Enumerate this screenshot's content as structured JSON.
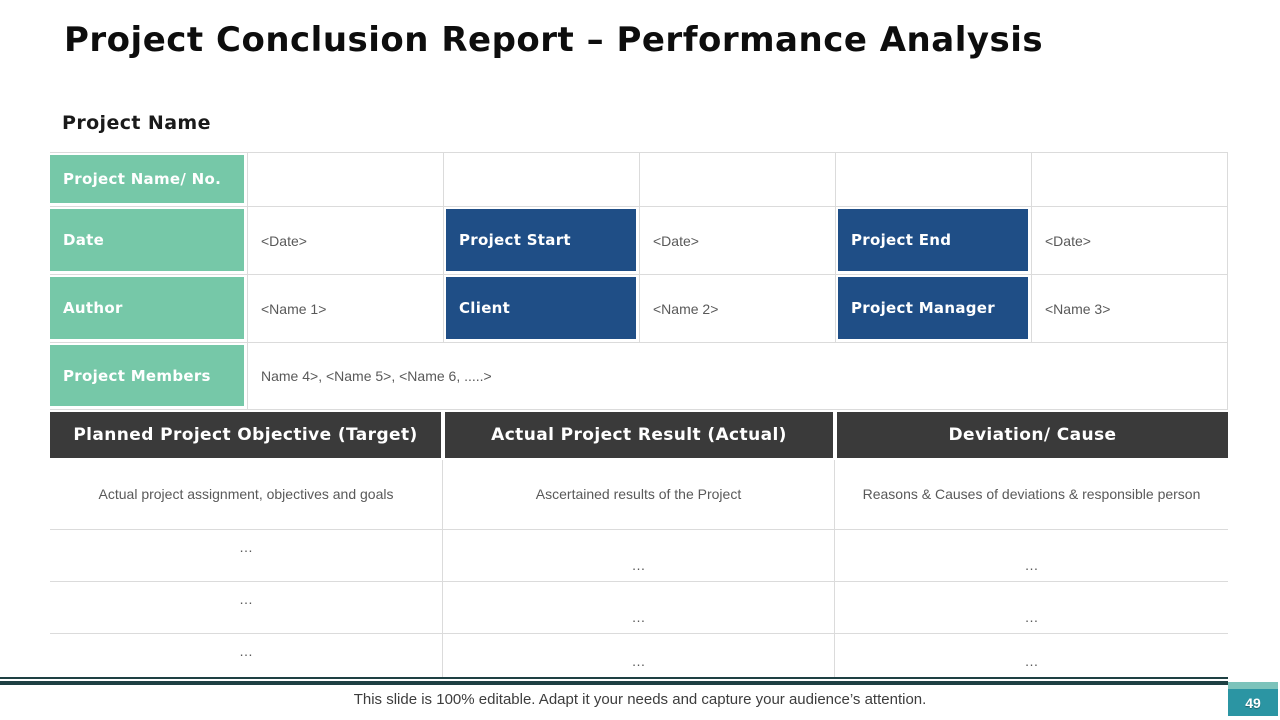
{
  "slide": {
    "title": "Project Conclusion Report – Performance Analysis",
    "section_label": "Project Name",
    "footer": "This slide is 100% editable. Adapt it your needs and capture your audience’s attention.",
    "page_number": "49"
  },
  "colors": {
    "green_label": "#76c8a8",
    "blue_label": "#1f4e86",
    "dark_header": "#3a3a3a",
    "badge_teal": "#2b95a3",
    "badge_band": "#7cc3bb",
    "divider_line": "#1e4043",
    "muted_text": "#595959"
  },
  "info_table": {
    "rows": [
      {
        "label": "Project Name/ No."
      },
      {
        "label": "Date",
        "value1": "<Date>",
        "label2": "Project Start",
        "value2": "<Date>",
        "label3": "Project End",
        "value3": "<Date>"
      },
      {
        "label": "Author",
        "value1": "<Name 1>",
        "label2": "Client",
        "value2": "<Name 2>",
        "label3": "Project Manager",
        "value3": "<Name 3>"
      },
      {
        "label": "Project Members",
        "value": "Name 4>, <Name 5>, <Name 6, .....>"
      }
    ]
  },
  "performance_table": {
    "headers": [
      "Planned Project Objective (Target)",
      "Actual Project Result (Actual)",
      "Deviation/ Cause"
    ],
    "rows": [
      [
        "Actual project assignment, objectives and goals",
        "Ascertained results of the Project",
        "Reasons & Causes of deviations & responsible person"
      ],
      [
        "…",
        "…",
        "…"
      ],
      [
        "…",
        "…",
        "…"
      ],
      [
        "…",
        "…",
        "…"
      ]
    ]
  }
}
